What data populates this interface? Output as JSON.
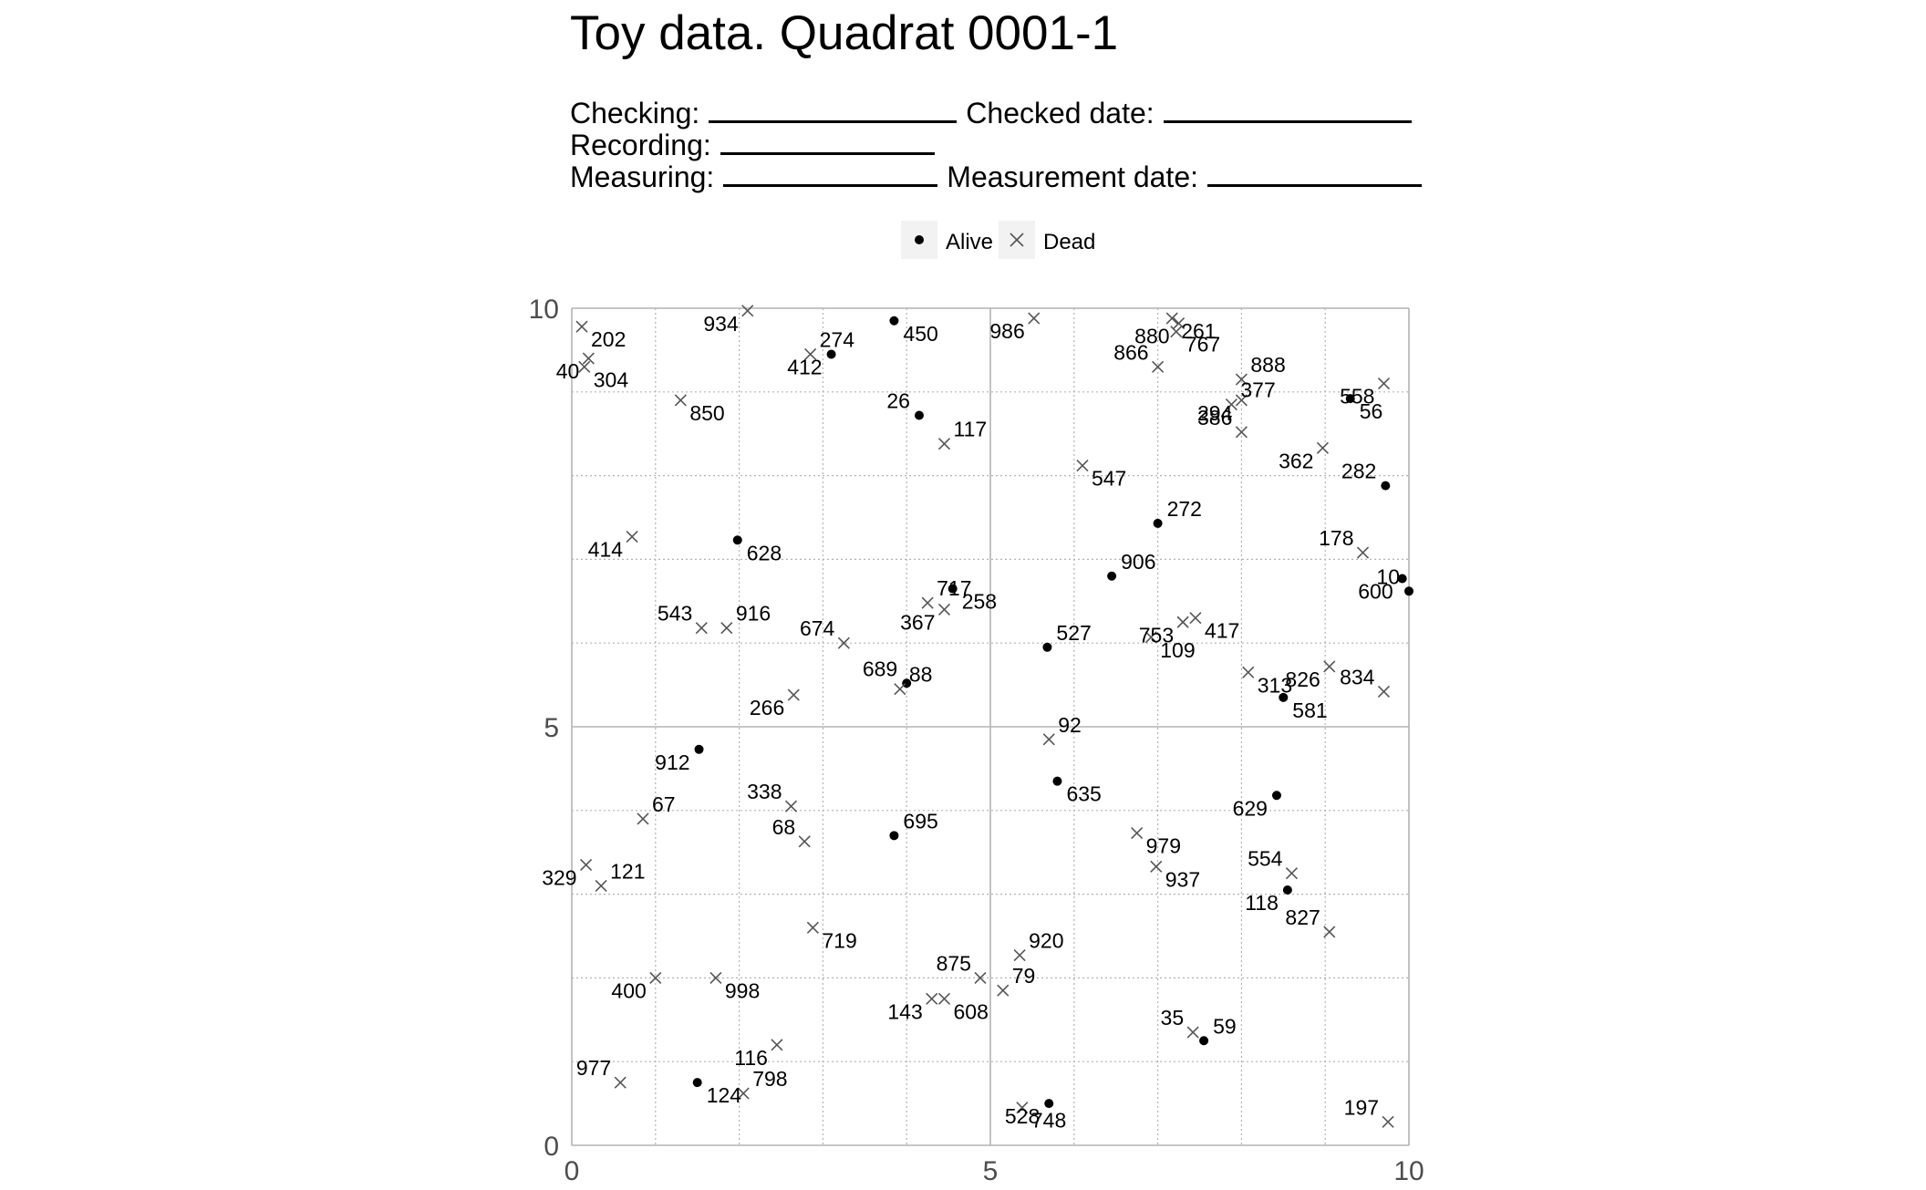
{
  "header": {
    "title": "Toy data. Quadrat 0001-1",
    "checking_label": "Checking:",
    "checked_date_label": "Checked date:",
    "recording_label": "Recording:",
    "measuring_label": "Measuring:",
    "measurement_date_label": "Measurement date:"
  },
  "colors": {
    "alive": "#000000",
    "dead": "#555555",
    "grid": "#b3b3b3",
    "legend_key_bg": "#f2f2f2"
  },
  "chart_data": {
    "type": "scatter",
    "xlim": [
      0,
      10
    ],
    "ylim": [
      0,
      10
    ],
    "x_ticks": [
      0,
      5,
      10
    ],
    "y_ticks": [
      0,
      5,
      10
    ],
    "grid": true,
    "legend_position": "top-center",
    "legend": [
      "Alive",
      "Dead"
    ],
    "points": [
      {
        "id": "202",
        "x": 0.12,
        "y": 9.78,
        "status": "dead"
      },
      {
        "id": "40",
        "x": 0.2,
        "y": 9.4,
        "status": "dead"
      },
      {
        "id": "304",
        "x": 0.15,
        "y": 9.3,
        "status": "dead"
      },
      {
        "id": "934",
        "x": 2.1,
        "y": 9.97,
        "status": "dead"
      },
      {
        "id": "274",
        "x": 2.85,
        "y": 9.45,
        "status": "dead"
      },
      {
        "id": "412",
        "x": 3.1,
        "y": 9.45,
        "status": "alive"
      },
      {
        "id": "450",
        "x": 3.85,
        "y": 9.85,
        "status": "alive"
      },
      {
        "id": "986",
        "x": 5.52,
        "y": 9.88,
        "status": "dead"
      },
      {
        "id": "261",
        "x": 7.17,
        "y": 9.88,
        "status": "dead"
      },
      {
        "id": "880",
        "x": 7.25,
        "y": 9.82,
        "status": "dead"
      },
      {
        "id": "767",
        "x": 7.22,
        "y": 9.72,
        "status": "dead"
      },
      {
        "id": "866",
        "x": 7.0,
        "y": 9.3,
        "status": "dead"
      },
      {
        "id": "888",
        "x": 8.0,
        "y": 9.15,
        "status": "dead"
      },
      {
        "id": "558",
        "x": 9.7,
        "y": 9.1,
        "status": "dead"
      },
      {
        "id": "850",
        "x": 1.3,
        "y": 8.9,
        "status": "dead"
      },
      {
        "id": "26",
        "x": 4.15,
        "y": 8.72,
        "status": "alive"
      },
      {
        "id": "377",
        "x": 7.88,
        "y": 8.85,
        "status": "dead"
      },
      {
        "id": "294",
        "x": 8.0,
        "y": 8.9,
        "status": "dead"
      },
      {
        "id": "56",
        "x": 9.3,
        "y": 8.92,
        "status": "alive"
      },
      {
        "id": "386",
        "x": 8.0,
        "y": 8.52,
        "status": "dead"
      },
      {
        "id": "117",
        "x": 4.45,
        "y": 8.38,
        "status": "dead"
      },
      {
        "id": "362",
        "x": 8.97,
        "y": 8.33,
        "status": "dead"
      },
      {
        "id": "547",
        "x": 6.1,
        "y": 8.12,
        "status": "dead"
      },
      {
        "id": "282",
        "x": 9.72,
        "y": 7.88,
        "status": "alive"
      },
      {
        "id": "272",
        "x": 7.0,
        "y": 7.43,
        "status": "alive"
      },
      {
        "id": "414",
        "x": 0.72,
        "y": 7.27,
        "status": "dead"
      },
      {
        "id": "628",
        "x": 1.98,
        "y": 7.23,
        "status": "alive"
      },
      {
        "id": "178",
        "x": 9.45,
        "y": 7.08,
        "status": "dead"
      },
      {
        "id": "906",
        "x": 6.45,
        "y": 6.8,
        "status": "alive"
      },
      {
        "id": "600",
        "x": 9.92,
        "y": 6.77,
        "status": "alive"
      },
      {
        "id": "258",
        "x": 4.55,
        "y": 6.65,
        "status": "alive"
      },
      {
        "id": "10",
        "x": 10.0,
        "y": 6.62,
        "status": "alive"
      },
      {
        "id": "717",
        "x": 4.25,
        "y": 6.48,
        "status": "dead"
      },
      {
        "id": "367",
        "x": 4.45,
        "y": 6.4,
        "status": "dead"
      },
      {
        "id": "417",
        "x": 7.45,
        "y": 6.3,
        "status": "dead"
      },
      {
        "id": "543",
        "x": 1.55,
        "y": 6.18,
        "status": "dead"
      },
      {
        "id": "916",
        "x": 1.85,
        "y": 6.18,
        "status": "dead"
      },
      {
        "id": "753",
        "x": 7.3,
        "y": 6.25,
        "status": "dead"
      },
      {
        "id": "109",
        "x": 6.92,
        "y": 6.07,
        "status": "dead"
      },
      {
        "id": "674",
        "x": 3.25,
        "y": 6.0,
        "status": "dead"
      },
      {
        "id": "527",
        "x": 5.68,
        "y": 5.95,
        "status": "alive"
      },
      {
        "id": "826",
        "x": 9.05,
        "y": 5.72,
        "status": "dead"
      },
      {
        "id": "313",
        "x": 8.08,
        "y": 5.65,
        "status": "dead"
      },
      {
        "id": "689",
        "x": 4.0,
        "y": 5.52,
        "status": "alive"
      },
      {
        "id": "88",
        "x": 3.92,
        "y": 5.45,
        "status": "dead"
      },
      {
        "id": "266",
        "x": 2.65,
        "y": 5.38,
        "status": "dead"
      },
      {
        "id": "581",
        "x": 8.5,
        "y": 5.35,
        "status": "alive"
      },
      {
        "id": "834",
        "x": 9.7,
        "y": 5.42,
        "status": "dead"
      },
      {
        "id": "92",
        "x": 5.7,
        "y": 4.85,
        "status": "dead"
      },
      {
        "id": "912",
        "x": 1.52,
        "y": 4.73,
        "status": "alive"
      },
      {
        "id": "635",
        "x": 5.8,
        "y": 4.35,
        "status": "alive"
      },
      {
        "id": "338",
        "x": 2.62,
        "y": 4.05,
        "status": "dead"
      },
      {
        "id": "67",
        "x": 0.85,
        "y": 3.9,
        "status": "dead"
      },
      {
        "id": "629",
        "x": 8.42,
        "y": 4.18,
        "status": "alive"
      },
      {
        "id": "979",
        "x": 6.75,
        "y": 3.73,
        "status": "dead"
      },
      {
        "id": "68",
        "x": 2.78,
        "y": 3.63,
        "status": "dead"
      },
      {
        "id": "695",
        "x": 3.85,
        "y": 3.7,
        "status": "alive"
      },
      {
        "id": "329",
        "x": 0.17,
        "y": 3.35,
        "status": "dead"
      },
      {
        "id": "937",
        "x": 6.98,
        "y": 3.33,
        "status": "dead"
      },
      {
        "id": "554",
        "x": 8.6,
        "y": 3.25,
        "status": "dead"
      },
      {
        "id": "121",
        "x": 0.35,
        "y": 3.1,
        "status": "dead"
      },
      {
        "id": "118",
        "x": 8.55,
        "y": 3.05,
        "status": "alive"
      },
      {
        "id": "719",
        "x": 2.88,
        "y": 2.6,
        "status": "dead"
      },
      {
        "id": "827",
        "x": 9.05,
        "y": 2.55,
        "status": "dead"
      },
      {
        "id": "920",
        "x": 5.35,
        "y": 2.27,
        "status": "dead"
      },
      {
        "id": "400",
        "x": 1.0,
        "y": 2.0,
        "status": "dead"
      },
      {
        "id": "998",
        "x": 1.72,
        "y": 2.0,
        "status": "dead"
      },
      {
        "id": "875",
        "x": 4.88,
        "y": 2.0,
        "status": "dead"
      },
      {
        "id": "79",
        "x": 5.15,
        "y": 1.85,
        "status": "dead"
      },
      {
        "id": "143",
        "x": 4.3,
        "y": 1.75,
        "status": "dead"
      },
      {
        "id": "608",
        "x": 4.45,
        "y": 1.75,
        "status": "dead"
      },
      {
        "id": "35",
        "x": 7.42,
        "y": 1.35,
        "status": "dead"
      },
      {
        "id": "59",
        "x": 7.55,
        "y": 1.25,
        "status": "alive"
      },
      {
        "id": "116",
        "x": 2.45,
        "y": 1.2,
        "status": "dead"
      },
      {
        "id": "124",
        "x": 1.5,
        "y": 0.75,
        "status": "alive"
      },
      {
        "id": "977",
        "x": 0.58,
        "y": 0.75,
        "status": "dead"
      },
      {
        "id": "798",
        "x": 2.05,
        "y": 0.62,
        "status": "dead"
      },
      {
        "id": "528",
        "x": 5.7,
        "y": 0.5,
        "status": "alive"
      },
      {
        "id": "748",
        "x": 5.38,
        "y": 0.45,
        "status": "dead"
      },
      {
        "id": "197",
        "x": 9.75,
        "y": 0.28,
        "status": "dead"
      }
    ]
  }
}
